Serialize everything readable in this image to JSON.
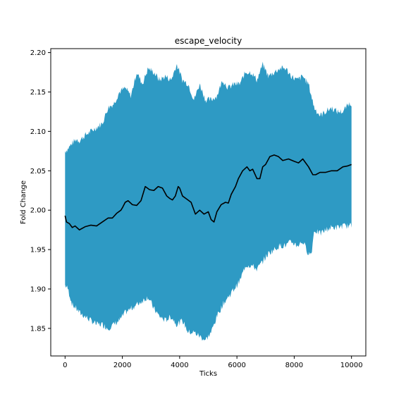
{
  "chart_data": {
    "type": "area",
    "title": "escape_velocity",
    "xlabel": "Ticks",
    "ylabel": "Fold Change",
    "xlim": [
      -500,
      10500
    ],
    "ylim": [
      1.815,
      2.205
    ],
    "xticks": [
      0,
      2000,
      4000,
      6000,
      8000,
      10000
    ],
    "yticks": [
      1.85,
      1.9,
      1.95,
      2.0,
      2.05,
      2.1,
      2.15,
      2.2
    ],
    "ytick_format": 2,
    "grid": false,
    "legend": "none",
    "band_color": "#2e9ac4",
    "line_color": "#000000",
    "series": [
      {
        "kind": "band",
        "x": [
          0,
          100,
          250,
          400,
          500,
          700,
          900,
          1100,
          1300,
          1500,
          1700,
          1900,
          2100,
          2300,
          2500,
          2700,
          2900,
          3100,
          3300,
          3500,
          3700,
          3900,
          4100,
          4300,
          4500,
          4700,
          4900,
          5100,
          5300,
          5500,
          5700,
          5900,
          6100,
          6300,
          6500,
          6700,
          6900,
          7100,
          7300,
          7500,
          7700,
          7900,
          8100,
          8300,
          8500,
          8600,
          8700,
          8900,
          9100,
          9300,
          9500,
          9700,
          9900,
          10000
        ],
        "upper": [
          2.075,
          2.078,
          2.085,
          2.09,
          2.088,
          2.095,
          2.1,
          2.105,
          2.11,
          2.13,
          2.135,
          2.15,
          2.155,
          2.145,
          2.175,
          2.16,
          2.18,
          2.175,
          2.165,
          2.17,
          2.165,
          2.185,
          2.165,
          2.16,
          2.14,
          2.16,
          2.14,
          2.14,
          2.145,
          2.165,
          2.155,
          2.16,
          2.16,
          2.175,
          2.175,
          2.165,
          2.185,
          2.17,
          2.175,
          2.18,
          2.18,
          2.17,
          2.165,
          2.17,
          2.16,
          2.145,
          2.13,
          2.12,
          2.125,
          2.13,
          2.125,
          2.125,
          2.135,
          2.135
        ],
        "lower": [
          1.905,
          1.9,
          1.88,
          1.875,
          1.87,
          1.865,
          1.86,
          1.855,
          1.855,
          1.85,
          1.855,
          1.86,
          1.87,
          1.875,
          1.88,
          1.885,
          1.89,
          1.875,
          1.865,
          1.86,
          1.865,
          1.855,
          1.86,
          1.845,
          1.845,
          1.84,
          1.835,
          1.845,
          1.865,
          1.88,
          1.89,
          1.9,
          1.91,
          1.93,
          1.93,
          1.925,
          1.935,
          1.945,
          1.95,
          1.955,
          1.955,
          1.96,
          1.955,
          1.96,
          1.945,
          1.945,
          1.975,
          1.97,
          1.975,
          1.978,
          1.978,
          1.98,
          1.98,
          1.98
        ]
      },
      {
        "kind": "line",
        "x": [
          0,
          50,
          150,
          250,
          350,
          500,
          700,
          900,
          1100,
          1300,
          1500,
          1650,
          1800,
          1950,
          2000,
          2100,
          2200,
          2350,
          2500,
          2650,
          2800,
          2950,
          3100,
          3250,
          3400,
          3550,
          3650,
          3750,
          3850,
          3950,
          4000,
          4100,
          4250,
          4400,
          4550,
          4700,
          4850,
          5000,
          5100,
          5200,
          5300,
          5450,
          5600,
          5700,
          5800,
          5950,
          6050,
          6200,
          6350,
          6450,
          6550,
          6700,
          6800,
          6900,
          7000,
          7150,
          7300,
          7450,
          7600,
          7800,
          8000,
          8150,
          8300,
          8400,
          8500,
          8650,
          8750,
          8900,
          9100,
          9300,
          9500,
          9700,
          9850,
          10000
        ],
        "y": [
          1.993,
          1.985,
          1.983,
          1.978,
          1.98,
          1.975,
          1.979,
          1.981,
          1.98,
          1.985,
          1.99,
          1.99,
          1.996,
          2.0,
          2.003,
          2.01,
          2.012,
          2.007,
          2.006,
          2.012,
          2.03,
          2.026,
          2.025,
          2.03,
          2.028,
          2.018,
          2.015,
          2.013,
          2.018,
          2.03,
          2.028,
          2.018,
          2.014,
          2.01,
          1.995,
          2.0,
          1.995,
          1.998,
          1.988,
          1.985,
          1.998,
          2.007,
          2.01,
          2.009,
          2.02,
          2.03,
          2.04,
          2.05,
          2.055,
          2.05,
          2.052,
          2.04,
          2.04,
          2.055,
          2.058,
          2.068,
          2.07,
          2.068,
          2.063,
          2.065,
          2.062,
          2.06,
          2.065,
          2.06,
          2.055,
          2.045,
          2.045,
          2.048,
          2.048,
          2.05,
          2.05,
          2.055,
          2.056,
          2.058
        ]
      }
    ]
  }
}
